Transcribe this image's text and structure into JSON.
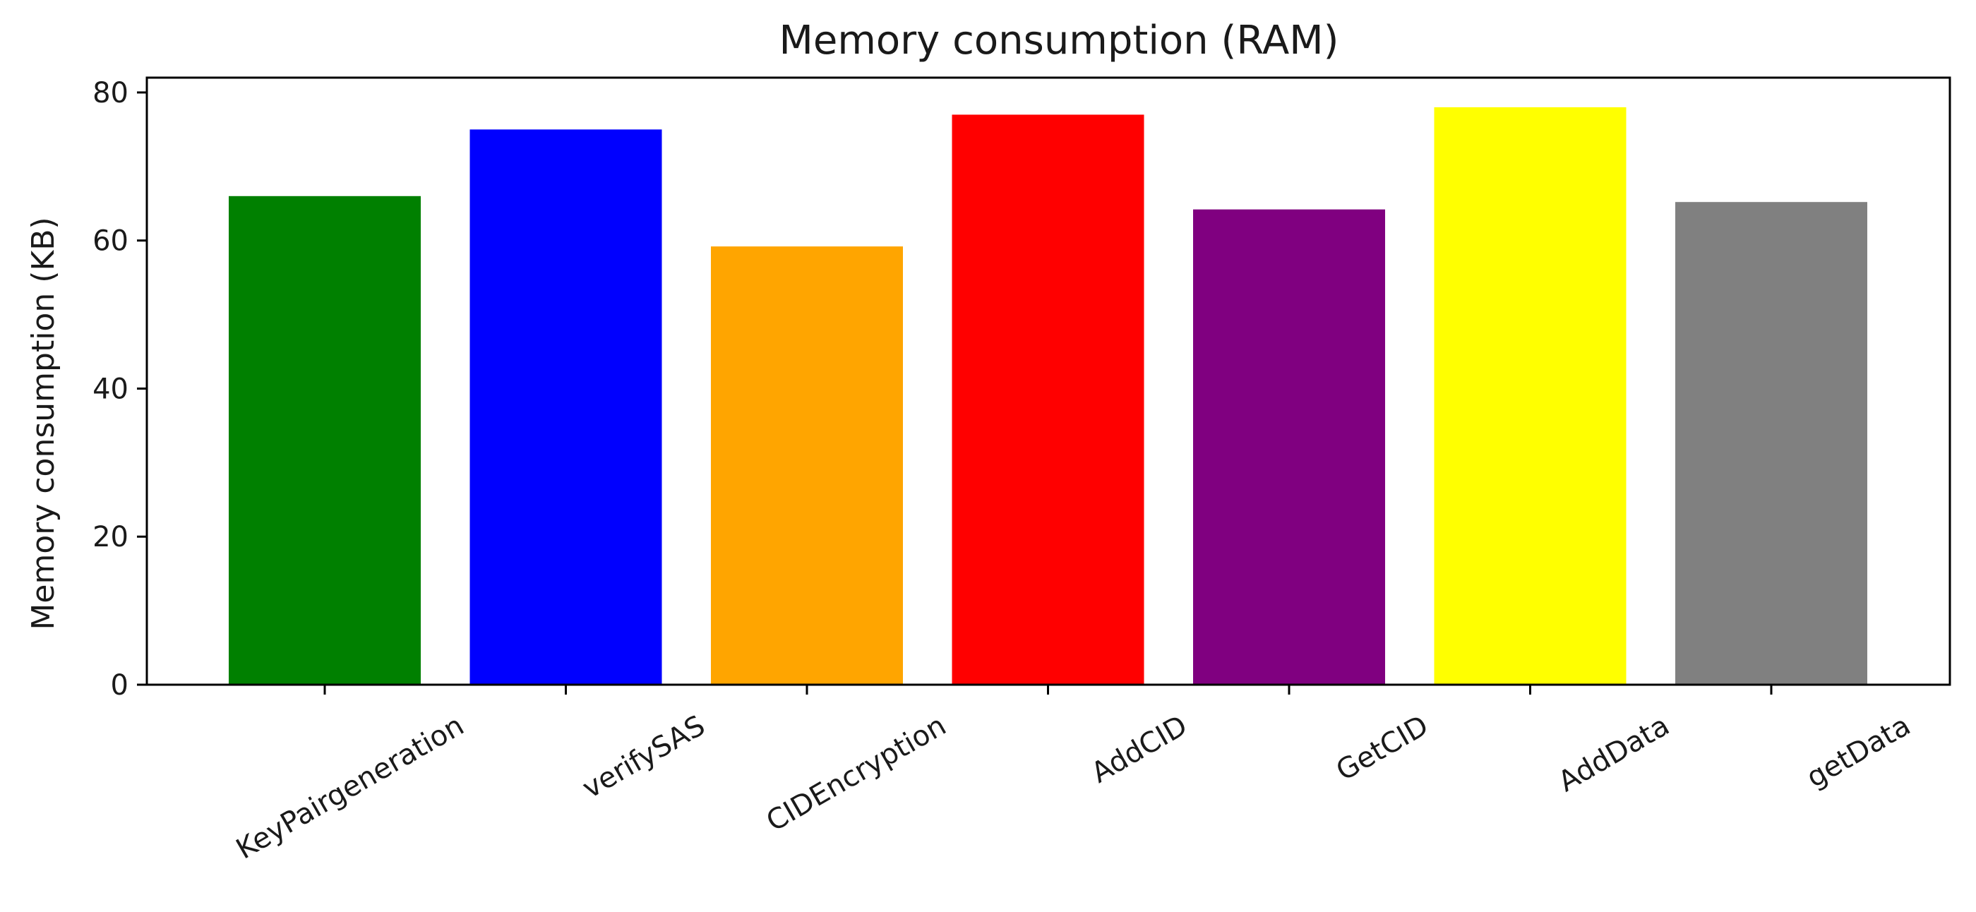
{
  "chart_data": {
    "type": "bar",
    "title": "Memory consumption (RAM)",
    "xlabel": "",
    "ylabel": "Memory consumption (KB)",
    "categories": [
      "KeyPairgeneration",
      "verifySAS",
      "CIDEncryption",
      "AddCID",
      "GetCID",
      "AddData",
      "getData"
    ],
    "values": [
      66,
      75,
      59.2,
      77,
      64.2,
      78,
      65.2
    ],
    "colors": [
      "#008000",
      "#0000ff",
      "#ffa500",
      "#ff0000",
      "#800080",
      "#ffff00",
      "#808080"
    ],
    "ylim": [
      0,
      82
    ],
    "yticks": [
      0,
      20,
      40,
      60,
      80
    ],
    "grid": false,
    "legend": "none"
  }
}
